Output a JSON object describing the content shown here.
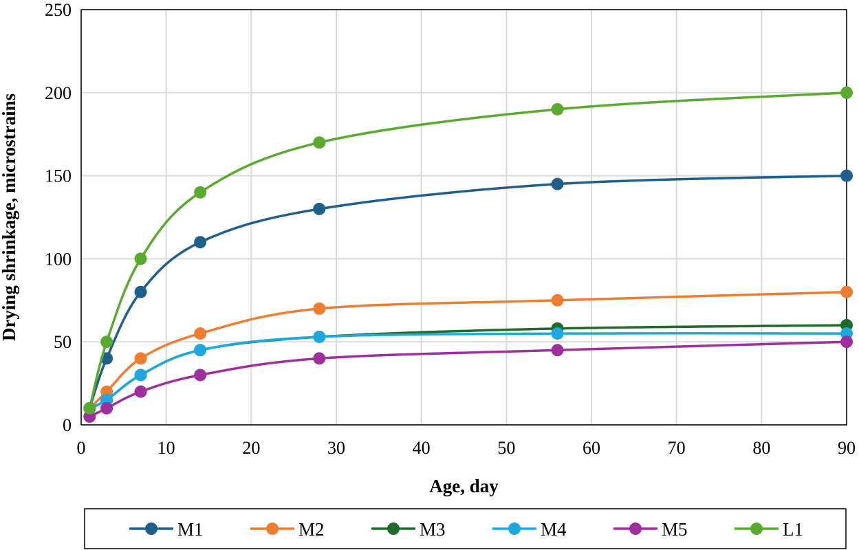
{
  "chart_data": {
    "type": "line",
    "title": "",
    "xlabel": "Age, day",
    "ylabel": "Drying shrinkage, microstrains",
    "xlim": [
      0,
      90
    ],
    "ylim": [
      0,
      250
    ],
    "xticks": [
      0,
      10,
      20,
      30,
      40,
      50,
      60,
      70,
      80,
      90
    ],
    "yticks": [
      0,
      50,
      100,
      150,
      200,
      250
    ],
    "grid": true,
    "legend_position": "bottom",
    "x": [
      1,
      3,
      7,
      14,
      28,
      56,
      90
    ],
    "series": [
      {
        "name": "M1",
        "color": "#1f5f8b",
        "values": [
          10,
          40,
          80,
          110,
          130,
          145,
          150
        ]
      },
      {
        "name": "M2",
        "color": "#ef7d31",
        "values": [
          10,
          20,
          40,
          55,
          70,
          75,
          80
        ]
      },
      {
        "name": "M3",
        "color": "#1e6b2a",
        "values": [
          10,
          15,
          30,
          45,
          53,
          58,
          60
        ]
      },
      {
        "name": "M4",
        "color": "#1fa8e0",
        "values": [
          10,
          15,
          30,
          45,
          53,
          55,
          55
        ]
      },
      {
        "name": "M5",
        "color": "#9e2f9c",
        "values": [
          5,
          10,
          20,
          30,
          40,
          45,
          50
        ]
      },
      {
        "name": "L1",
        "color": "#5aaa30",
        "values": [
          10,
          50,
          100,
          140,
          170,
          190,
          200
        ]
      }
    ]
  }
}
